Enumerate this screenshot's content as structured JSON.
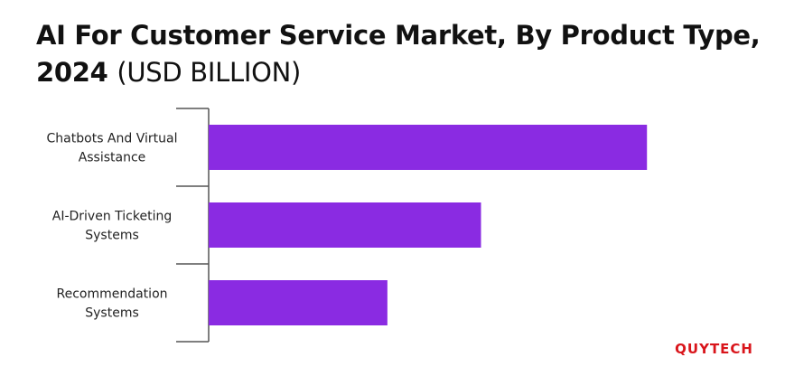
{
  "title": {
    "main": "AI For Customer Service Market, By Product Type,",
    "year": "2024",
    "unit": "(USD BILLION)"
  },
  "brand": {
    "name": "QUYTECH"
  },
  "chart_data": {
    "type": "bar",
    "orientation": "horizontal",
    "title": "AI For Customer Service Market, By Product Type, 2024 (USD BILLION)",
    "categories": [
      [
        "Chatbots And Virtual",
        "Assistance"
      ],
      [
        "AI-Driven Ticketing",
        "Systems"
      ],
      [
        "Recommendation",
        "Systems"
      ]
    ],
    "values": [
      5.15,
      3.2,
      2.1
    ],
    "xlim": [
      0,
      6.4
    ],
    "bar_color": "#8a2be2",
    "grid": false,
    "value_axis_shown": false
  }
}
